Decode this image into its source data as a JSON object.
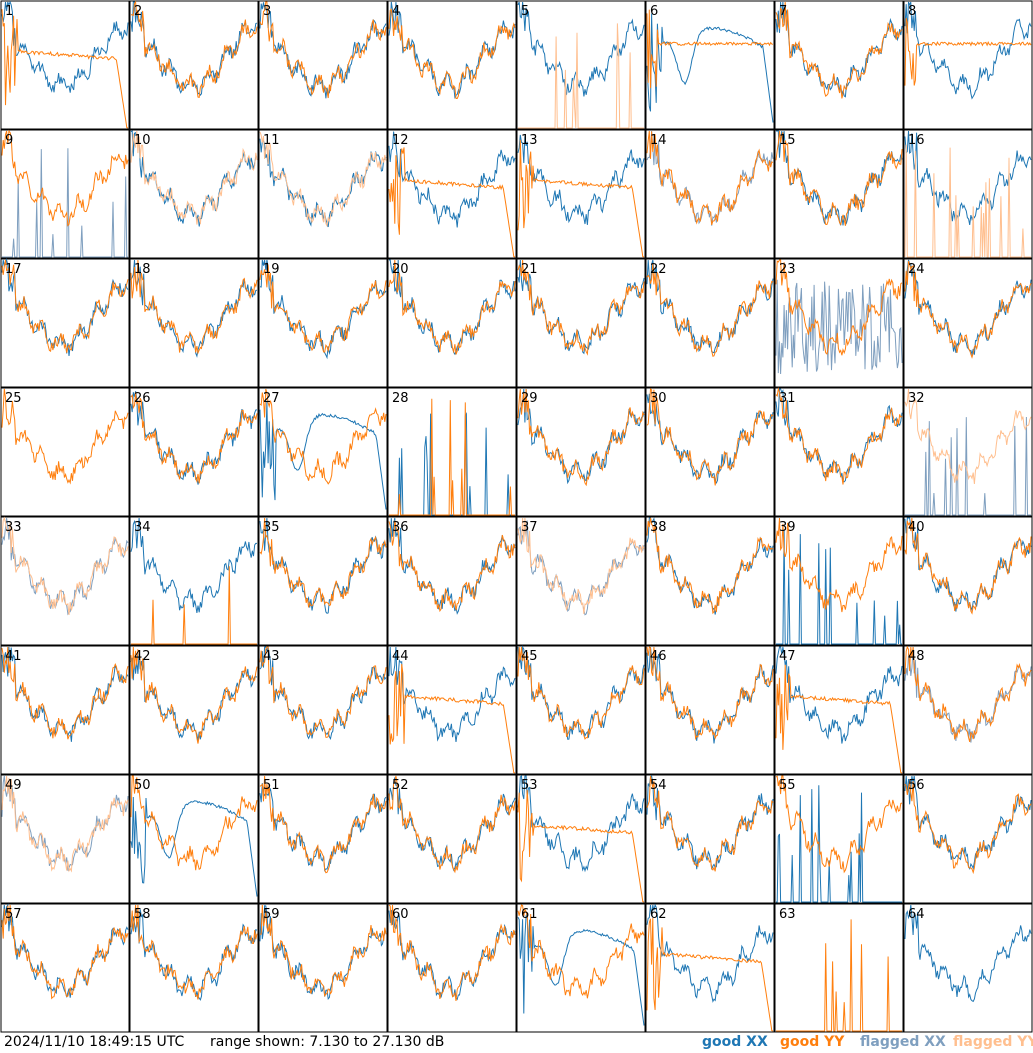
{
  "chart_data": {
    "type": "line",
    "layout": "8x8 small multiples",
    "panel_labels": [
      "1",
      "2",
      "3",
      "4",
      "5",
      "6",
      "7",
      "8",
      "9",
      "10",
      "11",
      "12",
      "13",
      "14",
      "15",
      "16",
      "17",
      "18",
      "19",
      "20",
      "21",
      "22",
      "23",
      "24",
      "25",
      "26",
      "27",
      "28",
      "29",
      "30",
      "31",
      "32",
      "33",
      "34",
      "35",
      "36",
      "37",
      "38",
      "39",
      "40",
      "41",
      "42",
      "43",
      "44",
      "45",
      "46",
      "47",
      "48",
      "49",
      "50",
      "51",
      "52",
      "53",
      "54",
      "55",
      "56",
      "57",
      "58",
      "59",
      "60",
      "61",
      "62",
      "63",
      "64"
    ],
    "ylim": [
      7.13,
      27.13
    ],
    "yunit": "dB",
    "grid": false,
    "series": [
      {
        "key": "good_xx",
        "name": "good XX",
        "color": "#1f77b4"
      },
      {
        "key": "good_yy",
        "name": "good YY",
        "color": "#ff7f0e"
      },
      {
        "key": "flagged_xx",
        "name": "flagged XX",
        "color": "#7f9fbf"
      },
      {
        "key": "flagged_yy",
        "name": "flagged YY",
        "color": "#ffbf8f"
      }
    ],
    "panels": {
      "1": {
        "xx": "normal",
        "yy": "lowdrop"
      },
      "2": {
        "xx": "normal",
        "yy": "normal"
      },
      "3": {
        "xx": "normal",
        "yy": "normal"
      },
      "4": {
        "xx": "normal",
        "yy": "normal"
      },
      "5": {
        "xx": "normal",
        "yy": "spikes",
        "yy_flagged": true
      },
      "6": {
        "xx": "dip",
        "yy": "flat"
      },
      "7": {
        "xx": "normal",
        "yy": "normal"
      },
      "8": {
        "xx": "normal",
        "yy": "flat"
      },
      "9": {
        "xx": "spikes",
        "yy": "normal",
        "xx_flagged": true
      },
      "10": {
        "xx": "normal",
        "yy": "normal",
        "yy_flagged": true
      },
      "11": {
        "xx": "normal",
        "yy": "normal",
        "yy_flagged": true
      },
      "12": {
        "xx": "normal",
        "yy": "lowdrop"
      },
      "13": {
        "xx": "normal",
        "yy": "lowdrop"
      },
      "14": {
        "xx": "normal",
        "yy": "normal",
        "xx_flagged": true
      },
      "15": {
        "xx": "normal",
        "yy": "normal"
      },
      "16": {
        "xx": "normal",
        "yy": "spikes",
        "yy_flagged": true
      },
      "17": {
        "xx": "normal",
        "yy": "normal"
      },
      "18": {
        "xx": "normal",
        "yy": "normal"
      },
      "19": {
        "xx": "normal",
        "yy": "normal"
      },
      "20": {
        "xx": "normal",
        "yy": "normal"
      },
      "21": {
        "xx": "normal",
        "yy": "normal"
      },
      "22": {
        "xx": "normal",
        "yy": "normal"
      },
      "23": {
        "xx": "noisy",
        "yy": "normal",
        "xx_flagged": true
      },
      "24": {
        "xx": "normal",
        "yy": "normal"
      },
      "25": {
        "xx": "none",
        "yy": "normal"
      },
      "26": {
        "xx": "normal",
        "yy": "normal"
      },
      "27": {
        "xx": "dip",
        "yy": "normal"
      },
      "28": {
        "xx": "spikes",
        "yy": "spikes"
      },
      "29": {
        "xx": "normal",
        "yy": "normal"
      },
      "30": {
        "xx": "normal",
        "yy": "normal"
      },
      "31": {
        "xx": "normal",
        "yy": "normal"
      },
      "32": {
        "xx": "spikes",
        "yy": "normal",
        "xx_flagged": true,
        "yy_flagged": true
      },
      "33": {
        "xx": "normal",
        "yy": "normal",
        "xx_flagged": true,
        "yy_flagged": true
      },
      "34": {
        "xx": "normal",
        "yy": "spikes"
      },
      "35": {
        "xx": "normal",
        "yy": "normal"
      },
      "36": {
        "xx": "normal",
        "yy": "normal"
      },
      "37": {
        "xx": "normal",
        "yy": "normal",
        "xx_flagged": true,
        "yy_flagged": true
      },
      "38": {
        "xx": "normal",
        "yy": "normal"
      },
      "39": {
        "xx": "spikes",
        "yy": "normal"
      },
      "40": {
        "xx": "normal",
        "yy": "normal"
      },
      "41": {
        "xx": "normal",
        "yy": "normal"
      },
      "42": {
        "xx": "normal",
        "yy": "normal"
      },
      "43": {
        "xx": "normal",
        "yy": "normal"
      },
      "44": {
        "xx": "normal",
        "yy": "lowdrop"
      },
      "45": {
        "xx": "normal",
        "yy": "normal"
      },
      "46": {
        "xx": "normal",
        "yy": "normal"
      },
      "47": {
        "xx": "normal",
        "yy": "lowdrop"
      },
      "48": {
        "xx": "normal",
        "yy": "normal",
        "xx_flagged": true
      },
      "49": {
        "xx": "normal",
        "yy": "normal",
        "xx_flagged": true,
        "yy_flagged": true
      },
      "50": {
        "xx": "dip",
        "yy": "normal"
      },
      "51": {
        "xx": "normal",
        "yy": "normal"
      },
      "52": {
        "xx": "normal",
        "yy": "normal"
      },
      "53": {
        "xx": "normal",
        "yy": "lowdrop"
      },
      "54": {
        "xx": "normal",
        "yy": "normal"
      },
      "55": {
        "xx": "spikes",
        "yy": "normal"
      },
      "56": {
        "xx": "normal",
        "yy": "normal"
      },
      "57": {
        "xx": "normal",
        "yy": "normal"
      },
      "58": {
        "xx": "normal",
        "yy": "normal"
      },
      "59": {
        "xx": "normal",
        "yy": "normal"
      },
      "60": {
        "xx": "normal",
        "yy": "normal"
      },
      "61": {
        "xx": "dip",
        "yy": "normal"
      },
      "62": {
        "xx": "normal",
        "yy": "lowdrop"
      },
      "63": {
        "xx": "none",
        "yy": "spikes"
      },
      "64": {
        "xx": "normal",
        "yy": "none"
      }
    }
  },
  "footer": {
    "timestamp": "2024/11/10 18:49:15 UTC",
    "range": "range shown: 7.130 to 27.130 dB",
    "legend": [
      "good XX",
      "good YY",
      "flagged XX",
      "flagged YY"
    ]
  }
}
